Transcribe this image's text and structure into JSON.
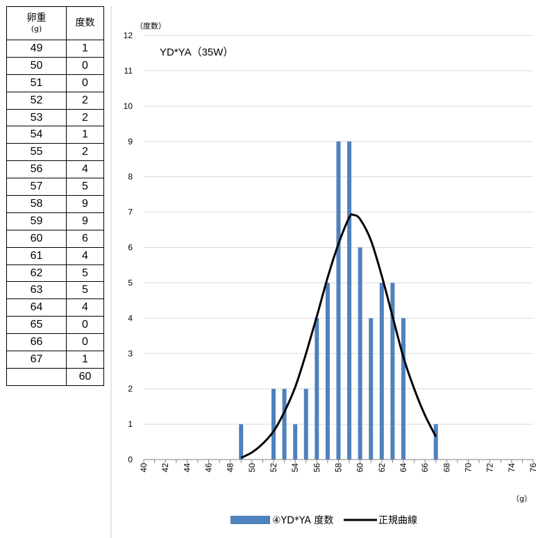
{
  "table": {
    "header_weight": "卵重",
    "header_weight_unit": "(g)",
    "header_count": "度数",
    "rows": [
      {
        "w": "49",
        "c": "1"
      },
      {
        "w": "50",
        "c": "0"
      },
      {
        "w": "51",
        "c": "0"
      },
      {
        "w": "52",
        "c": "2"
      },
      {
        "w": "53",
        "c": "2"
      },
      {
        "w": "54",
        "c": "1"
      },
      {
        "w": "55",
        "c": "2"
      },
      {
        "w": "56",
        "c": "4"
      },
      {
        "w": "57",
        "c": "5"
      },
      {
        "w": "58",
        "c": "9"
      },
      {
        "w": "59",
        "c": "9"
      },
      {
        "w": "60",
        "c": "6"
      },
      {
        "w": "61",
        "c": "4"
      },
      {
        "w": "62",
        "c": "5"
      },
      {
        "w": "63",
        "c": "5"
      },
      {
        "w": "64",
        "c": "4"
      },
      {
        "w": "65",
        "c": "0"
      },
      {
        "w": "66",
        "c": "0"
      },
      {
        "w": "67",
        "c": "1"
      }
    ],
    "total_label": "",
    "total": "60"
  },
  "chart_data": {
    "type": "bar",
    "title": "YD*YA（35W）",
    "ylabel": "（度数）",
    "xlabel": "（g）",
    "xlim": [
      40,
      76
    ],
    "ylim": [
      0,
      12
    ],
    "x_ticks": [
      40,
      42,
      44,
      46,
      48,
      50,
      52,
      54,
      56,
      58,
      60,
      62,
      64,
      66,
      68,
      70,
      72,
      74,
      76
    ],
    "y_ticks": [
      0,
      1,
      2,
      3,
      4,
      5,
      6,
      7,
      8,
      9,
      10,
      11,
      12
    ],
    "grid": "horizontal",
    "legend_position": "bottom",
    "series": [
      {
        "name": "④YD*YA 度数",
        "kind": "bar",
        "color": "#4f81bd",
        "x": [
          49,
          50,
          51,
          52,
          53,
          54,
          55,
          56,
          57,
          58,
          59,
          60,
          61,
          62,
          63,
          64,
          65,
          66,
          67
        ],
        "values": [
          1,
          0,
          0,
          2,
          2,
          1,
          2,
          4,
          5,
          9,
          9,
          6,
          4,
          5,
          5,
          4,
          0,
          0,
          1
        ]
      },
      {
        "name": "正規曲線",
        "kind": "line",
        "color": "#000000",
        "x": [
          49,
          50,
          51,
          52,
          53,
          54,
          55,
          56,
          57,
          58,
          59,
          59.4,
          60,
          61,
          62,
          63,
          64,
          65,
          66,
          67
        ],
        "values": [
          0.05,
          0.2,
          0.45,
          0.8,
          1.35,
          2.05,
          3.0,
          4.05,
          5.15,
          6.1,
          6.85,
          6.92,
          6.8,
          6.2,
          5.2,
          4.05,
          2.9,
          2.0,
          1.25,
          0.65
        ]
      }
    ]
  }
}
